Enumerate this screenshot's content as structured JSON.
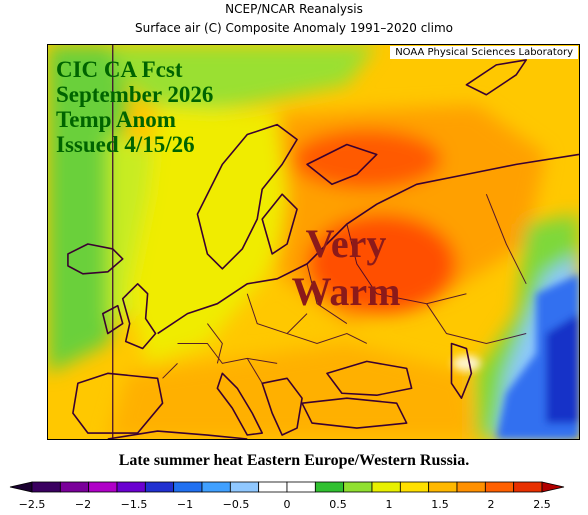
{
  "header": {
    "title": "NCEP/NCAR Reanalysis",
    "subtitle": "Surface air (C) Composite Anomaly 1991–2020 climo",
    "credit": "NOAA Physical Sciences Laboratory"
  },
  "forecast_box": {
    "lines": [
      "CIC CA Fcst",
      "September 2026",
      "Temp Anom",
      "Issued 4/15/26"
    ]
  },
  "annotation": {
    "line1": "Very",
    "line2": "Warm"
  },
  "caption": "Late summer heat Eastern Europe/Western Russia.",
  "colorbar": {
    "ticks": [
      "−2.5",
      "−2",
      "−1.5",
      "−1",
      "−0.5",
      "0",
      "0.5",
      "1",
      "1.5",
      "2",
      "2.5"
    ],
    "colors": [
      "#3a0060",
      "#7a009a",
      "#b000c8",
      "#6a00d0",
      "#2030d0",
      "#2070f0",
      "#40a0ff",
      "#90c8ff",
      "#ffffff",
      "#ffffff",
      "#30c030",
      "#90e030",
      "#e8f000",
      "#ffe000",
      "#ffb800",
      "#ff9000",
      "#ff6000",
      "#e83000"
    ]
  },
  "colors": {
    "forecast_text": "#006400",
    "annotation_text": "#8b1a1a"
  }
}
